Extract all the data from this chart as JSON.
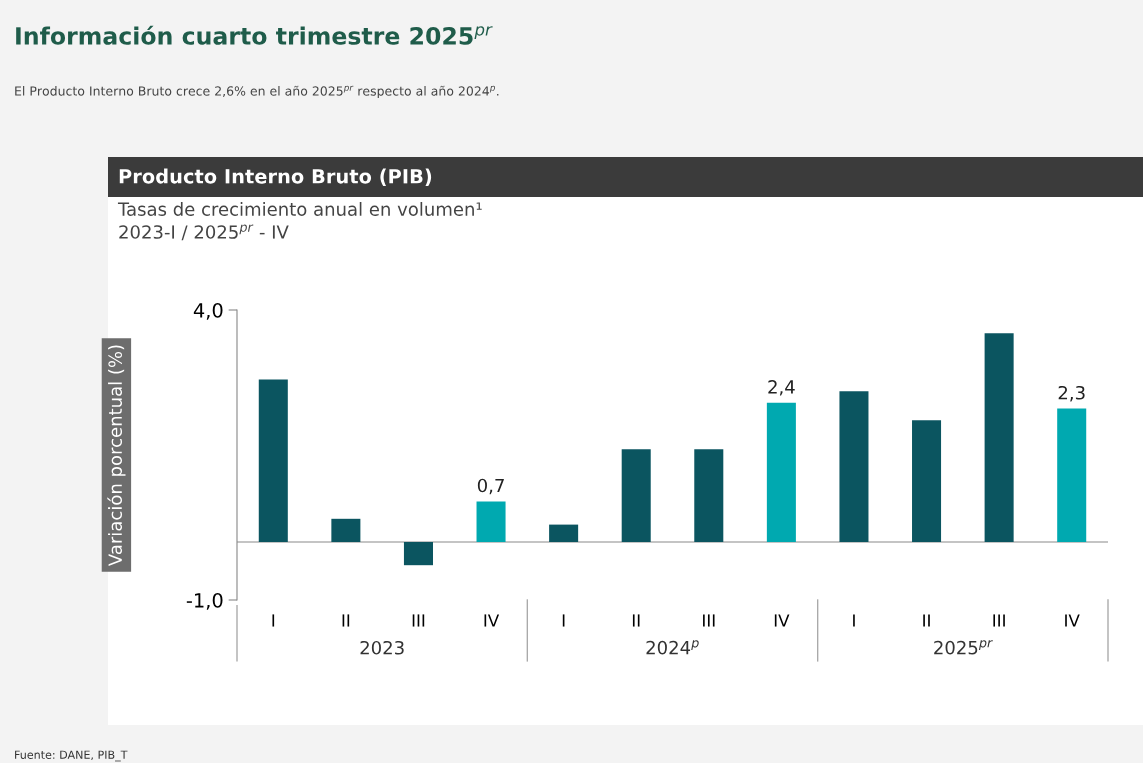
{
  "chart_data": {
    "type": "bar",
    "title": "Producto Interno Bruto (PIB)",
    "subtitle": "Tasas de crecimiento anual en volumen¹\n2023-I / 2025$^{pr}$ - IV",
    "ylabel": "Variación porcentual (%)",
    "categories": [
      "I",
      "II",
      "III",
      "IV",
      "I",
      "II",
      "III",
      "IV",
      "I",
      "II",
      "III",
      "IV"
    ],
    "values": [
      2.8,
      0.4,
      -0.4,
      0.7,
      0.3,
      1.6,
      1.6,
      2.4,
      2.6,
      2.1,
      3.6,
      2.3
    ],
    "colors": [
      "#0b5560",
      "#0b5560",
      "#0b5560",
      "#00a9b0",
      "#0b5560",
      "#0b5560",
      "#0b5560",
      "#00a9b0",
      "#0b5560",
      "#0b5560",
      "#0b5560",
      "#00a9b0"
    ],
    "value_labels": [
      null,
      null,
      null,
      "0,7",
      null,
      null,
      null,
      "2,4",
      null,
      null,
      null,
      "2,3"
    ],
    "ylim": [
      -1,
      4
    ],
    "yticks": [
      {
        "value": 4,
        "label": "4,0"
      },
      {
        "value": -1,
        "label": "-1,0"
      }
    ],
    "ref_lines": [
      {
        "axis": "y",
        "value": 0,
        "color": "#b0b0b0"
      }
    ],
    "grid": false,
    "legend": false,
    "annotations": [
      "Información cuarto trimestre 2025$^{pr}$",
      "El Producto Interno Bruto crece 2,6% en el año 2025$^{pr}$ respecto al año 2024$^{p}$.",
      "2023",
      "2024$^{p}$",
      "2025$^{pr}$",
      "Fuente: DANE, PIB_T"
    ]
  }
}
